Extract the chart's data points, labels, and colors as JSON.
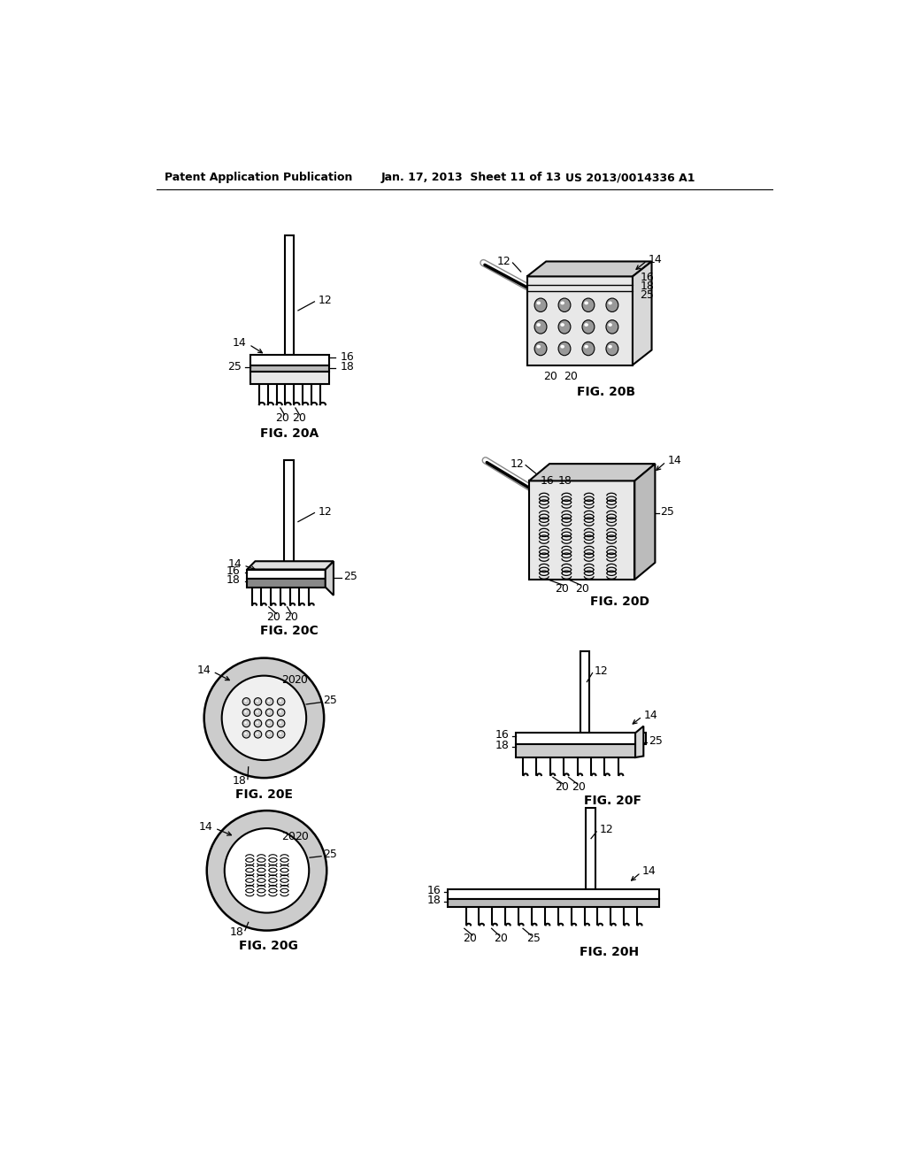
{
  "bg_color": "#ffffff",
  "header_left": "Patent Application Publication",
  "header_mid": "Jan. 17, 2013  Sheet 11 of 13",
  "header_right": "US 2013/0014336 A1",
  "line_color": "#000000",
  "text_color": "#000000"
}
